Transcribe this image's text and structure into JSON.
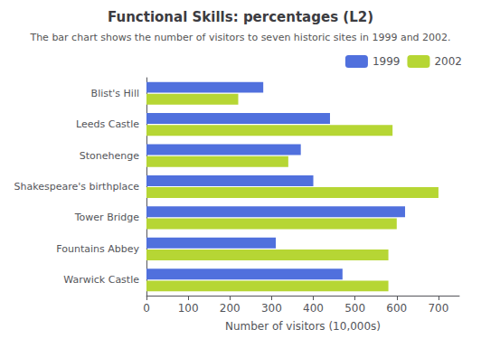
{
  "chart_data": {
    "type": "bar",
    "orientation": "horizontal",
    "title": "Functional Skills: percentages (L2)",
    "subtitle": "The bar chart shows the number of visitors to seven historic sites in 1999 and 2002.",
    "categories": [
      "Warwick Castle",
      "Fountains Abbey",
      "Tower Bridge",
      "Shakespeare's birthplace",
      "Stonehenge",
      "Leeds Castle",
      "Blist's Hill"
    ],
    "series": [
      {
        "name": "1999",
        "values": [
          470,
          310,
          620,
          400,
          370,
          440,
          280
        ]
      },
      {
        "name": "2002",
        "values": [
          580,
          580,
          600,
          700,
          340,
          590,
          220
        ]
      }
    ],
    "xlabel": "Number of visitors (10,000s)",
    "xlim": [
      0,
      750
    ],
    "xticks": [
      0,
      100,
      200,
      300,
      400,
      500,
      600,
      700
    ],
    "grid": false,
    "legend": "right"
  }
}
